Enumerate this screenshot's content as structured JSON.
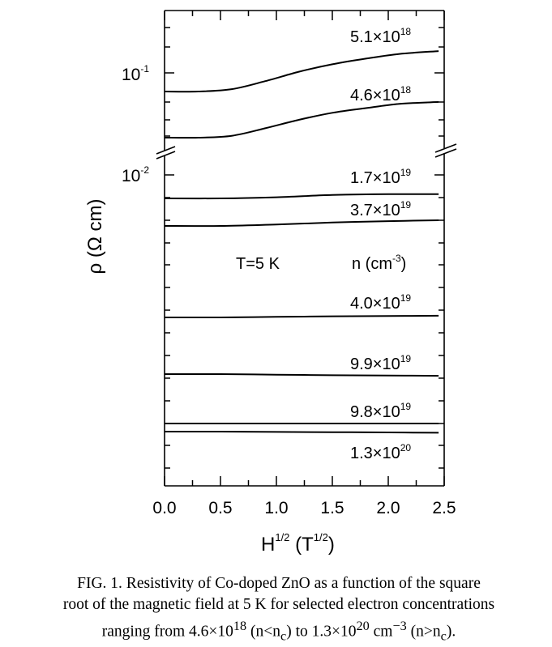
{
  "chart_data": {
    "type": "line",
    "xlabel": {
      "base": "H",
      "base_exp": "1/2",
      "unit": "T",
      "unit_exp": "1/2"
    },
    "ylabel": "ρ (Ω cm)",
    "xlim": [
      0.0,
      2.5
    ],
    "x_ticks": [
      "0.0",
      "0.5",
      "1.0",
      "1.5",
      "2.0",
      "2.5"
    ],
    "y_scale": "log (broken axis)",
    "y_tick_labels": [
      {
        "base": "10",
        "exp": "-1"
      },
      {
        "base": "10",
        "exp": "-2"
      }
    ],
    "annotations": {
      "temperature": "T=5 K",
      "n_unit": {
        "text": "n (cm",
        "exp": "-3",
        "close": ")"
      }
    },
    "series": [
      {
        "name": {
          "mant": "5.1×10",
          "exp": "18"
        },
        "x": [
          0.0,
          0.3,
          0.6,
          0.9,
          1.2,
          1.5,
          1.8,
          2.1,
          2.45
        ],
        "y_rel": [
          0.0,
          0.0,
          0.05,
          0.22,
          0.42,
          0.58,
          0.7,
          0.8,
          0.86
        ]
      },
      {
        "name": {
          "mant": "4.6×10",
          "exp": "18"
        },
        "x": [
          0.0,
          0.3,
          0.6,
          0.9,
          1.2,
          1.5,
          1.8,
          2.1,
          2.45
        ],
        "y_rel": [
          0.0,
          0.0,
          0.04,
          0.2,
          0.38,
          0.53,
          0.63,
          0.72,
          0.76
        ]
      },
      {
        "name": {
          "mant": "1.7×10",
          "exp": "19"
        },
        "x": [
          0.0,
          0.5,
          1.0,
          1.5,
          2.0,
          2.45
        ],
        "y_rel": [
          0.0,
          0.0,
          0.04,
          0.12,
          0.15,
          0.15
        ]
      },
      {
        "name": {
          "mant": "3.7×10",
          "exp": "19"
        },
        "x": [
          0.0,
          0.5,
          1.0,
          1.5,
          2.0,
          2.45
        ],
        "y_rel": [
          0.0,
          0.0,
          0.05,
          0.12,
          0.17,
          0.2
        ]
      },
      {
        "name": {
          "mant": "4.0×10",
          "exp": "19"
        },
        "x": [
          0.0,
          0.5,
          1.0,
          1.5,
          2.0,
          2.45
        ],
        "y_rel": [
          0.0,
          0.0,
          0.02,
          0.04,
          0.05,
          0.06
        ]
      },
      {
        "name": {
          "mant": "9.9×10",
          "exp": "19"
        },
        "x": [
          0.0,
          0.5,
          1.0,
          1.5,
          2.0,
          2.45
        ],
        "y_rel": [
          0.0,
          0.0,
          -0.02,
          -0.04,
          -0.05,
          -0.06
        ]
      },
      {
        "name": {
          "mant": "9.8×10",
          "exp": "19"
        },
        "x": [
          0.0,
          0.5,
          1.0,
          1.5,
          2.0,
          2.45
        ],
        "y_rel": [
          0.0,
          0.0,
          0.0,
          0.0,
          0.0,
          0.0
        ]
      },
      {
        "name": {
          "mant": "1.3×10",
          "exp": "20"
        },
        "x": [
          0.0,
          0.5,
          1.0,
          1.5,
          2.0,
          2.45
        ],
        "y_rel": [
          0.0,
          0.0,
          -0.01,
          -0.02,
          -0.03,
          -0.04
        ]
      }
    ]
  },
  "caption": {
    "prefix": "FIG. 1. Resistivity of Co-doped ZnO as a function of the square",
    "line2": "root of the magnetic field at 5 K for selected electron concentrations",
    "line3_a": "ranging from 4.6×10",
    "line3_a_exp": "18",
    "line3_b": " (n<n",
    "line3_b_sub": "c",
    "line3_c": ") to 1.3×10",
    "line3_c_exp": "20",
    "line3_d": " cm",
    "line3_d_exp": "−3",
    "line3_e": " (n>n",
    "line3_e_sub": "c",
    "line3_f": ")."
  }
}
